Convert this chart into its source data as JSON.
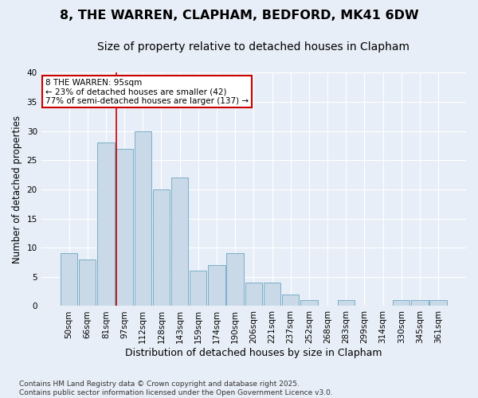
{
  "title": "8, THE WARREN, CLAPHAM, BEDFORD, MK41 6DW",
  "subtitle": "Size of property relative to detached houses in Clapham",
  "xlabel": "Distribution of detached houses by size in Clapham",
  "ylabel": "Number of detached properties",
  "categories": [
    "50sqm",
    "66sqm",
    "81sqm",
    "97sqm",
    "112sqm",
    "128sqm",
    "143sqm",
    "159sqm",
    "174sqm",
    "190sqm",
    "206sqm",
    "221sqm",
    "237sqm",
    "252sqm",
    "268sqm",
    "283sqm",
    "299sqm",
    "314sqm",
    "330sqm",
    "345sqm",
    "361sqm"
  ],
  "values": [
    9,
    8,
    28,
    27,
    30,
    20,
    22,
    6,
    7,
    9,
    4,
    4,
    2,
    1,
    0,
    1,
    0,
    0,
    1,
    1,
    1
  ],
  "bar_color": "#c9d9e8",
  "bar_edge_color": "#7aafc8",
  "background_color": "#e8eef7",
  "grid_color": "#ffffff",
  "vline_color": "#cc0000",
  "vline_pos": 2.58,
  "ylim": [
    0,
    40
  ],
  "yticks": [
    0,
    5,
    10,
    15,
    20,
    25,
    30,
    35,
    40
  ],
  "annotation_text": "8 THE WARREN: 95sqm\n← 23% of detached houses are smaller (42)\n77% of semi-detached houses are larger (137) →",
  "annotation_box_edgecolor": "#cc0000",
  "footer": "Contains HM Land Registry data © Crown copyright and database right 2025.\nContains public sector information licensed under the Open Government Licence v3.0.",
  "title_fontsize": 11.5,
  "subtitle_fontsize": 10,
  "xlabel_fontsize": 9,
  "ylabel_fontsize": 8.5,
  "tick_fontsize": 7.5,
  "annotation_fontsize": 7.5,
  "footer_fontsize": 6.5
}
